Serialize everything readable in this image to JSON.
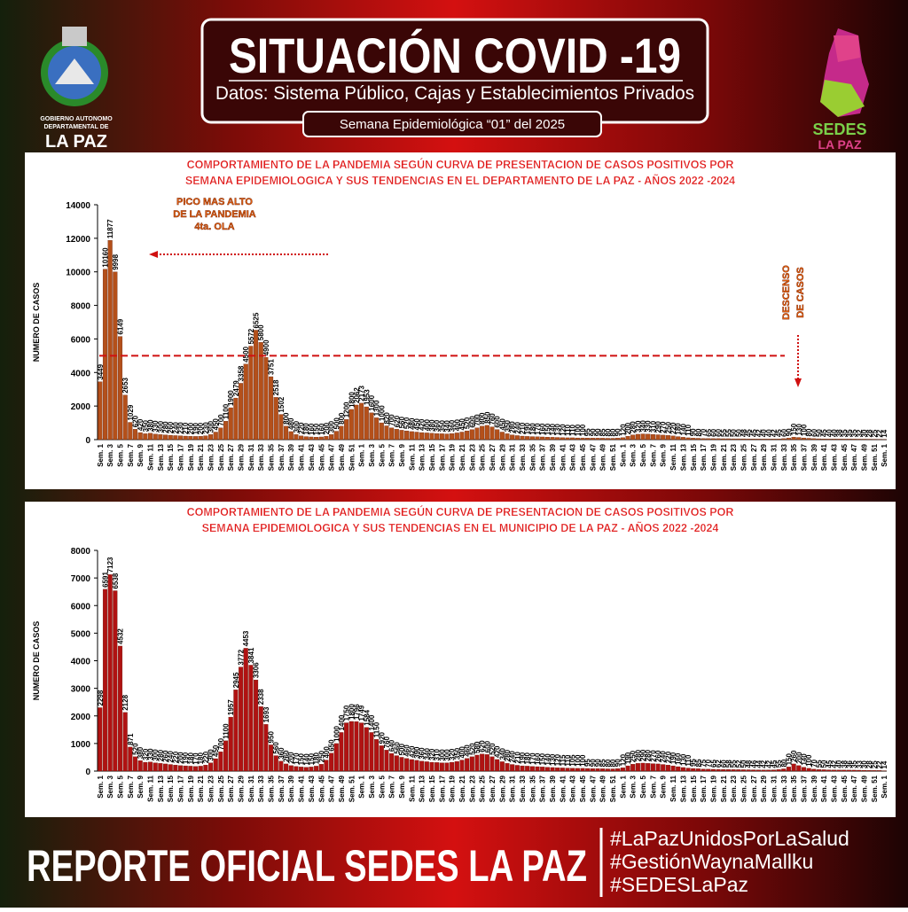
{
  "header": {
    "title": "SITUACIÓN COVID -19",
    "subtitle": "Datos: Sistema Público, Cajas y Establecimientos Privados",
    "week": "Semana  Epidemiológica “01”  del  2025"
  },
  "logos": {
    "left": [
      "GOBIERNO AUTONOMO",
      "DEPARTAMENTAL DE",
      "LA PAZ"
    ],
    "right": [
      "SEDES",
      "LA PAZ"
    ]
  },
  "footer": {
    "title": "REPORTE OFICIAL SEDES LA PAZ",
    "hashtags": [
      "#LaPazUnidosPorLaSalud",
      "#GestiónWaynaMallku",
      "#SEDESLaPaz"
    ]
  },
  "chart_data": [
    {
      "type": "bar",
      "title": [
        "COMPORTAMIENTO DE LA PANDEMIA  SEGÚN CURVA DE PRESENTACION DE CASOS POSITIVOS POR",
        "SEMANA EPIDEMIOLOGICA Y SUS TENDENCIAS  EN EL DEPARTAMENTO DE LA PAZ  - AÑOS 2022 -2024"
      ],
      "y_label": "NUMERO DE CASOS",
      "color": "#b4501a",
      "ylim": [
        0,
        14000
      ],
      "yticks": [
        0,
        2000,
        4000,
        6000,
        8000,
        10000,
        12000,
        14000
      ],
      "grid": false,
      "reference_line": 5000,
      "reference_color": "#d01010",
      "annotations": [
        "PICO MAS ALTO",
        "DE LA PANDEMIA",
        "4ta.  OLA",
        "DESCENSO",
        "DE CASOS"
      ],
      "categories": [
        "Sem. 1",
        null,
        "Sem. 3",
        null,
        "Sem. 5",
        null,
        "Sem. 7",
        null,
        "Sem. 9",
        null,
        "Sem. 11",
        null,
        "Sem. 13",
        null,
        "Sem. 15",
        null,
        "Sem. 17",
        null,
        "Sem. 19",
        null,
        "Sem. 21",
        null,
        "Sem. 23",
        null,
        "Sem. 25",
        null,
        "Sem. 27",
        null,
        "Sem. 29",
        null,
        "Sem. 31",
        null,
        "Sem. 33",
        null,
        "Sem. 35",
        null,
        "Sem. 37",
        null,
        "Sem. 39",
        null,
        "Sem. 41",
        null,
        "Sem. 43",
        null,
        "Sem. 45",
        null,
        "Sem. 47",
        null,
        "Sem. 49",
        null,
        "Sem. 51",
        null,
        "Sem. 1",
        null,
        "Sem. 3",
        null,
        "Sem. 5",
        null,
        "Sem. 7",
        null,
        "Sem. 9",
        null,
        "Sem. 11",
        null,
        "Sem. 13",
        null,
        "Sem. 15",
        null,
        "Sem. 17",
        null,
        "Sem. 19",
        null,
        "Sem. 21",
        null,
        "Sem. 23",
        null,
        "Sem. 25",
        null,
        "Sem. 27",
        null,
        "Sem. 29",
        null,
        "Sem. 31",
        null,
        "Sem. 33",
        null,
        "Sem. 35",
        null,
        "Sem. 37",
        null,
        "Sem. 39",
        null,
        "Sem. 41",
        null,
        "Sem. 43",
        null,
        "Sem. 45",
        null,
        "Sem. 47",
        null,
        "Sem. 49",
        null,
        "Sem. 51",
        null,
        "Sem. 1",
        null,
        "Sem. 3",
        null,
        "Sem. 5",
        null,
        "Sem. 7",
        null,
        "Sem. 9",
        null,
        "Sem. 11",
        null,
        "Sem. 13",
        null,
        "Sem. 15",
        null,
        "Sem. 17",
        null,
        "Sem. 19",
        null,
        "Sem. 21",
        null,
        "Sem. 23",
        null,
        "Sem. 25",
        null,
        "Sem. 27",
        null,
        "Sem. 29",
        null,
        "Sem. 31",
        null,
        "Sem. 33",
        null,
        "Sem. 35",
        null,
        "Sem. 37",
        null,
        "Sem. 39",
        null,
        "Sem. 41",
        null,
        "Sem. 43",
        null,
        "Sem. 45",
        null,
        "Sem. 47",
        null,
        "Sem. 49",
        null,
        "Sem. 51",
        null,
        "Sem. 1"
      ],
      "values": [
        3449,
        10160,
        11877,
        9998,
        6149,
        2653,
        1029,
        620,
        420,
        350,
        380,
        330,
        300,
        280,
        260,
        240,
        230,
        210,
        200,
        190,
        200,
        230,
        300,
        450,
        700,
        1100,
        1900,
        2479,
        3358,
        4500,
        5572,
        6525,
        5800,
        4900,
        3751,
        2518,
        1502,
        800,
        480,
        300,
        220,
        180,
        160,
        150,
        160,
        200,
        300,
        500,
        800,
        1200,
        1800,
        2062,
        2173,
        1953,
        1600,
        1300,
        1000,
        820,
        700,
        620,
        560,
        520,
        480,
        450,
        420,
        400,
        380,
        360,
        350,
        340,
        360,
        400,
        450,
        520,
        600,
        700,
        800,
        850,
        760,
        600,
        450,
        350,
        280,
        240,
        210,
        190,
        180,
        170,
        160,
        150,
        140,
        130,
        120,
        110,
        110,
        100,
        100,
        95,
        90,
        90,
        85,
        80,
        80,
        90,
        120,
        200,
        280,
        320,
        340,
        330,
        310,
        290,
        270,
        250,
        220,
        180,
        140,
        110,
        90,
        80,
        70,
        65,
        60,
        60,
        55,
        55,
        50,
        50,
        48,
        45,
        45,
        42,
        40,
        40,
        42,
        45,
        60,
        90,
        150,
        130,
        100,
        80,
        60,
        50,
        45,
        40,
        40,
        38,
        35,
        35,
        35,
        32,
        30,
        28,
        25,
        22,
        14
      ]
    },
    {
      "type": "bar",
      "title": [
        "COMPORTAMIENTO DE LA PANDEMIA  SEGÚN CURVA DE PRESENTACION DE CASOS POSITIVOS POR",
        "SEMANA EPIDEMIOLOGICA Y SUS TENDENCIAS  EN EL MUNICIPIO  DE LA PAZ  - AÑOS 2022 -2024"
      ],
      "y_label": "NUMERO DE CASOS",
      "color": "#b01212",
      "ylim": [
        0,
        8000
      ],
      "yticks": [
        0,
        1000,
        2000,
        3000,
        4000,
        5000,
        6000,
        7000,
        8000
      ],
      "grid": false,
      "categories": [
        "Sem. 1",
        null,
        "Sem. 3",
        null,
        "Sem. 5",
        null,
        "Sem. 7",
        null,
        "Sem. 9",
        null,
        "Sem. 11",
        null,
        "Sem. 13",
        null,
        "Sem. 15",
        null,
        "Sem. 17",
        null,
        "Sem. 19",
        null,
        "Sem. 21",
        null,
        "Sem. 23",
        null,
        "Sem. 25",
        null,
        "Sem. 27",
        null,
        "Sem. 29",
        null,
        "Sem. 31",
        null,
        "Sem. 33",
        null,
        "Sem. 35",
        null,
        "Sem. 37",
        null,
        "Sem. 39",
        null,
        "Sem. 41",
        null,
        "Sem. 43",
        null,
        "Sem. 45",
        null,
        "Sem. 47",
        null,
        "Sem. 49",
        null,
        "Sem. 51",
        null,
        "Sem. 1",
        null,
        "Sem. 3",
        null,
        "Sem. 5",
        null,
        "Sem. 7",
        null,
        "Sem. 9",
        null,
        "Sem. 11",
        null,
        "Sem. 13",
        null,
        "Sem. 15",
        null,
        "Sem. 17",
        null,
        "Sem. 19",
        null,
        "Sem. 21",
        null,
        "Sem. 23",
        null,
        "Sem. 25",
        null,
        "Sem. 27",
        null,
        "Sem. 29",
        null,
        "Sem. 31",
        null,
        "Sem. 33",
        null,
        "Sem. 35",
        null,
        "Sem. 37",
        null,
        "Sem. 39",
        null,
        "Sem. 41",
        null,
        "Sem. 43",
        null,
        "Sem. 45",
        null,
        "Sem. 47",
        null,
        "Sem. 49",
        null,
        "Sem. 51",
        null,
        "Sem. 1",
        null,
        "Sem. 3",
        null,
        "Sem. 5",
        null,
        "Sem. 7",
        null,
        "Sem. 9",
        null,
        "Sem. 11",
        null,
        "Sem. 13",
        null,
        "Sem. 15",
        null,
        "Sem. 17",
        null,
        "Sem. 19",
        null,
        "Sem. 21",
        null,
        "Sem. 23",
        null,
        "Sem. 25",
        null,
        "Sem. 27",
        null,
        "Sem. 29",
        null,
        "Sem. 31",
        null,
        "Sem. 33",
        null,
        "Sem. 35",
        null,
        "Sem. 37",
        null,
        "Sem. 39",
        null,
        "Sem. 41",
        null,
        "Sem. 43",
        null,
        "Sem. 45",
        null,
        "Sem. 47",
        null,
        "Sem. 49",
        null,
        "Sem. 51",
        null,
        "Sem. 1"
      ],
      "values": [
        2298,
        6591,
        7123,
        6538,
        4532,
        2128,
        871,
        520,
        380,
        320,
        330,
        300,
        280,
        260,
        240,
        220,
        200,
        190,
        180,
        170,
        180,
        220,
        300,
        450,
        700,
        1100,
        1957,
        2945,
        3772,
        4453,
        3841,
        3306,
        2338,
        1693,
        950,
        560,
        360,
        260,
        200,
        170,
        150,
        140,
        150,
        180,
        250,
        400,
        650,
        1000,
        1400,
        1750,
        1800,
        1796,
        1749,
        1584,
        1400,
        1150,
        920,
        760,
        640,
        560,
        500,
        460,
        420,
        390,
        360,
        340,
        320,
        310,
        300,
        300,
        320,
        350,
        400,
        460,
        520,
        580,
        620,
        600,
        520,
        420,
        340,
        280,
        240,
        210,
        190,
        180,
        170,
        160,
        150,
        140,
        130,
        120,
        115,
        110,
        105,
        100,
        100,
        95,
        90,
        90,
        85,
        80,
        80,
        90,
        120,
        190,
        250,
        280,
        290,
        280,
        270,
        260,
        240,
        220,
        190,
        160,
        130,
        110,
        95,
        85,
        75,
        70,
        65,
        62,
        60,
        58,
        55,
        52,
        50,
        48,
        46,
        44,
        42,
        42,
        45,
        55,
        80,
        150,
        260,
        200,
        140,
        100,
        70,
        55,
        50,
        45,
        42,
        40,
        38,
        36,
        35,
        33,
        30,
        28,
        25,
        22,
        14
      ]
    }
  ]
}
